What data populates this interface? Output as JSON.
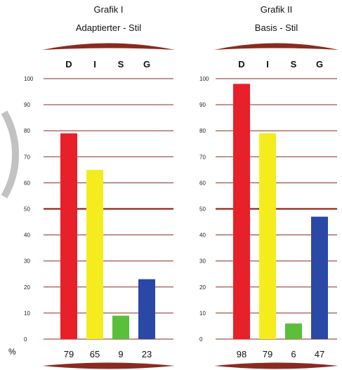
{
  "percent_label": "%",
  "colors": {
    "D": "#e8202a",
    "I": "#f5ec1e",
    "S": "#5bbf3a",
    "G": "#2a48a6",
    "grid": "#8b2a1e",
    "ring": "#9a9a9a"
  },
  "chart_data": [
    {
      "type": "bar",
      "title": "Grafik I",
      "subtitle": "Adaptierter - Stil",
      "categories": [
        "D",
        "I",
        "S",
        "G"
      ],
      "values": [
        79,
        65,
        9,
        23
      ],
      "ylim": [
        0,
        100
      ],
      "yticks": [
        0,
        10,
        20,
        30,
        40,
        50,
        60,
        70,
        80,
        90,
        100
      ],
      "grid": true
    },
    {
      "type": "bar",
      "title": "Grafik II",
      "subtitle": "Basis - Stil",
      "categories": [
        "D",
        "I",
        "S",
        "G"
      ],
      "values": [
        98,
        79,
        6,
        47
      ],
      "ylim": [
        0,
        100
      ],
      "yticks": [
        0,
        10,
        20,
        30,
        40,
        50,
        60,
        70,
        80,
        90,
        100
      ],
      "grid": true
    }
  ]
}
